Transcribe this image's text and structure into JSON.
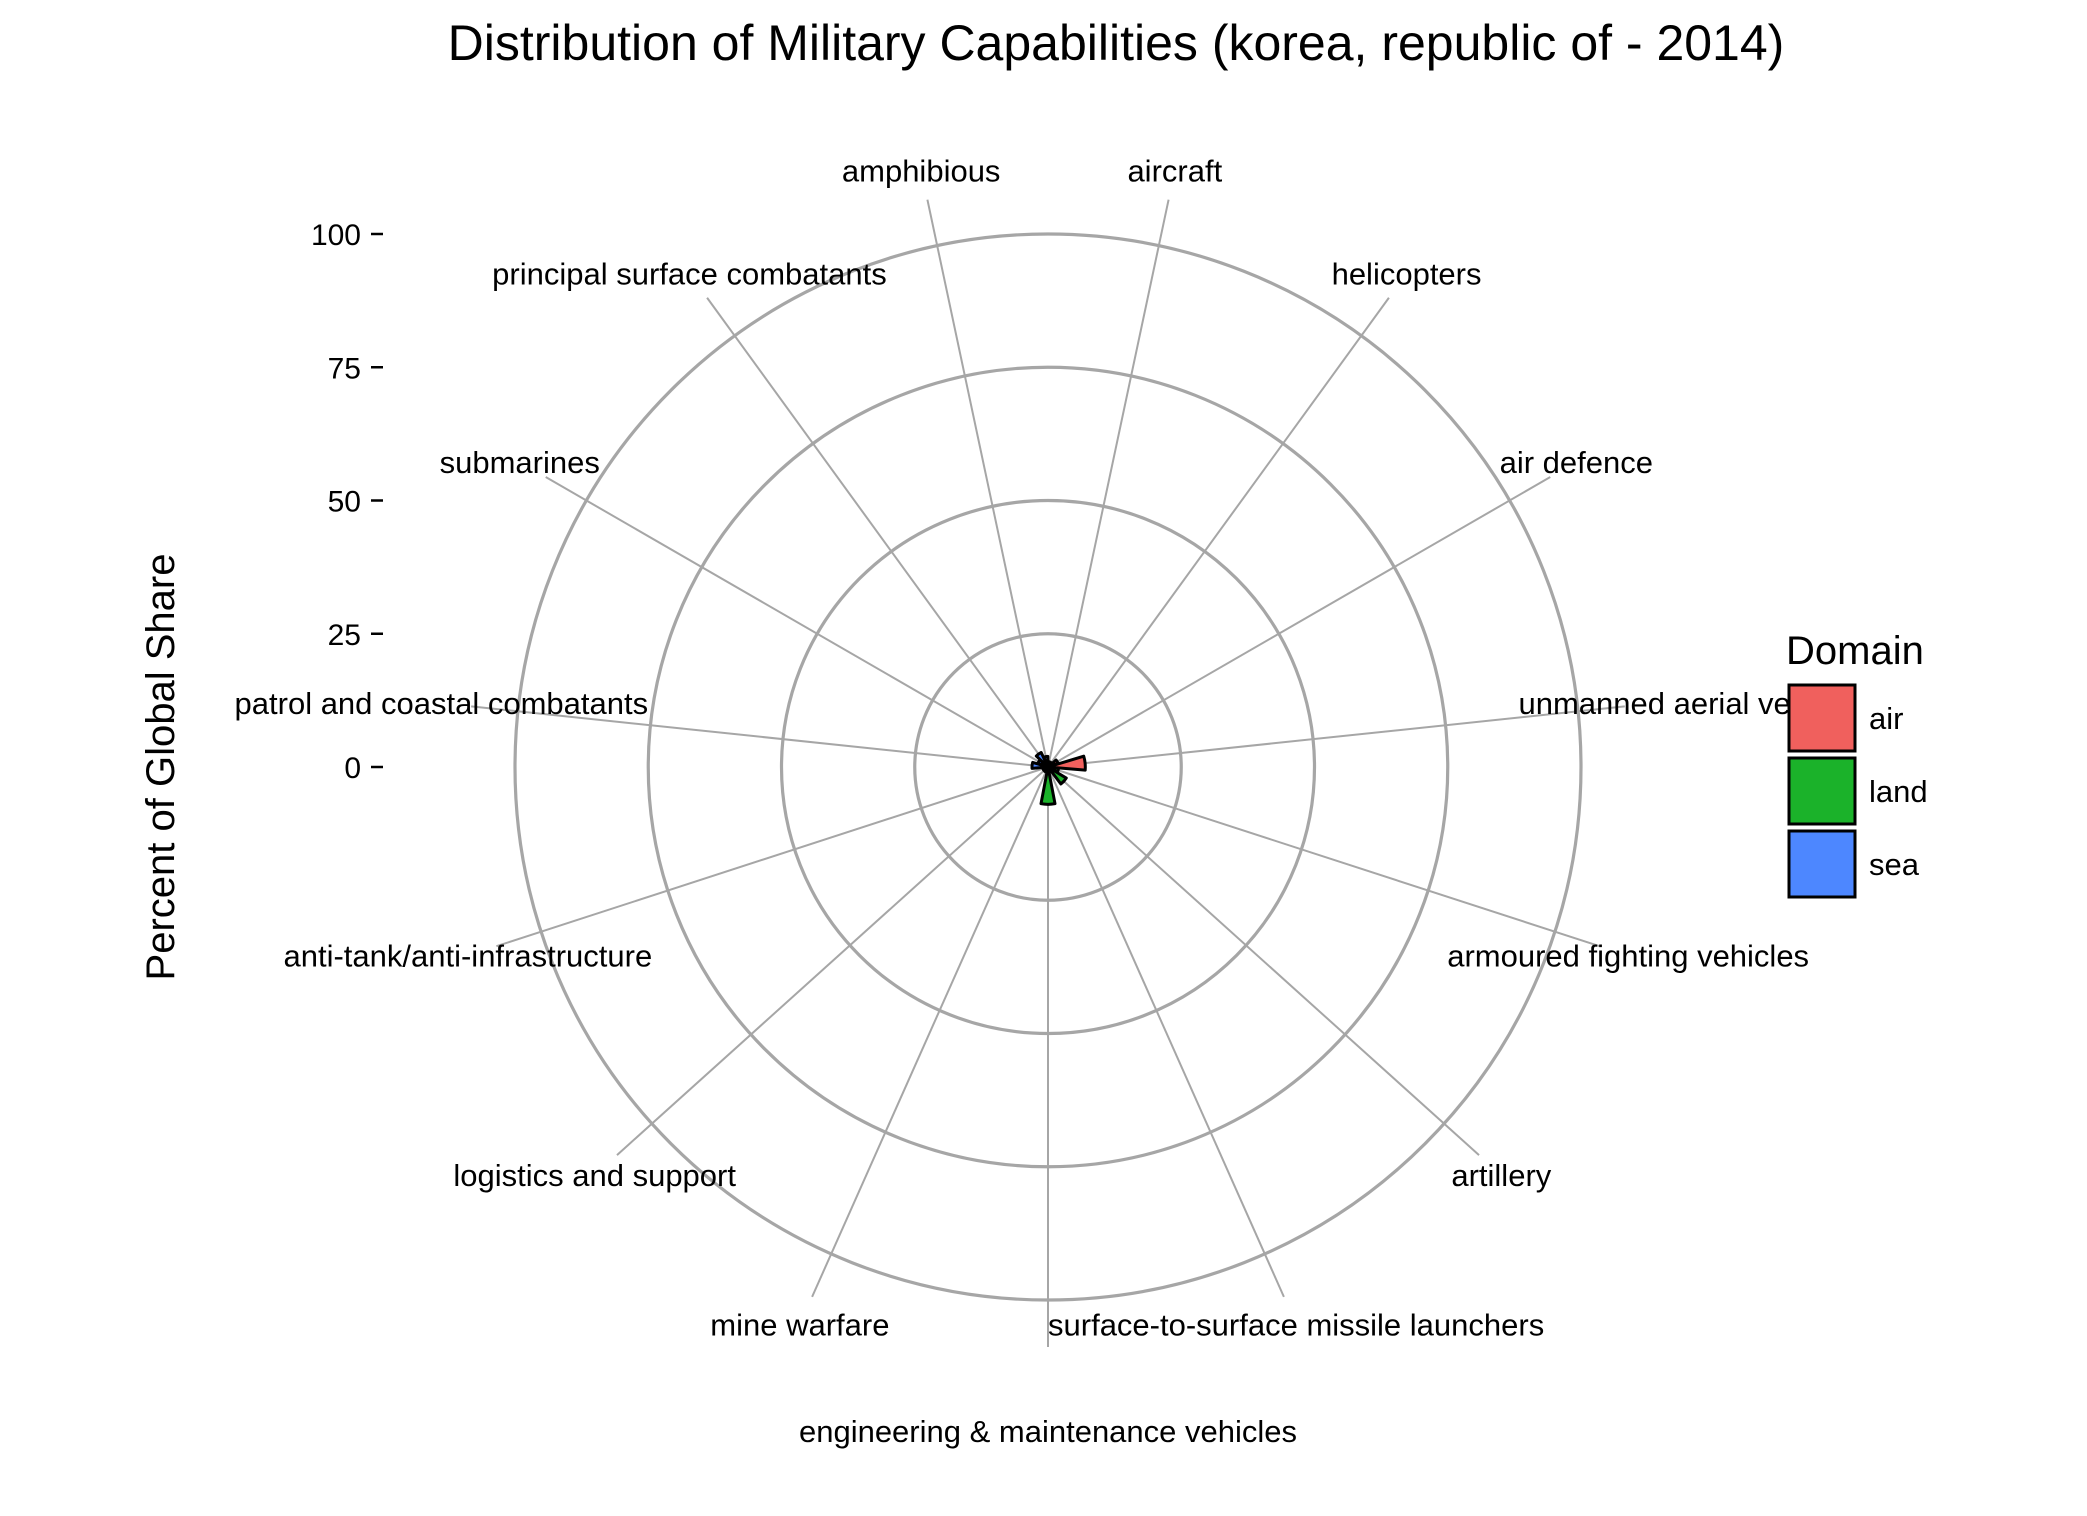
{
  "chart_data": {
    "type": "bar",
    "coord": "polar",
    "title": "Distribution of Military Capabilities (korea, republic of - 2014)",
    "ylabel": "Percent of Global Share",
    "xlabel": "",
    "ylim": [
      0,
      100
    ],
    "yticks": [
      0,
      25,
      50,
      75,
      100
    ],
    "grid": true,
    "legend": {
      "title": "Domain",
      "position": "right",
      "entries": [
        {
          "name": "air",
          "color": "#F0605D"
        },
        {
          "name": "land",
          "color": "#1BB22A"
        },
        {
          "name": "sea",
          "color": "#4D87FF"
        }
      ]
    },
    "categories": [
      {
        "label": "aircraft",
        "domain": "air",
        "value": 1
      },
      {
        "label": "helicopters",
        "domain": "air",
        "value": 1
      },
      {
        "label": "air defence",
        "domain": "air",
        "value": 2
      },
      {
        "label": "unmanned aerial ve",
        "domain": "air",
        "value": 7
      },
      {
        "label": "armoured fighting vehicles",
        "domain": "land",
        "value": 2
      },
      {
        "label": "artillery",
        "domain": "land",
        "value": 4
      },
      {
        "label": "surface-to-surface missile launchers",
        "domain": "land",
        "value": 1
      },
      {
        "label": "engineering & maintenance vehicles",
        "domain": "land",
        "value": 7
      },
      {
        "label": "mine warfare",
        "domain": "sea",
        "value": 1
      },
      {
        "label": "logistics and support",
        "domain": "land",
        "value": 1
      },
      {
        "label": "anti-tank/anti-infrastructure",
        "domain": "land",
        "value": 1
      },
      {
        "label": "patrol and coastal combatants",
        "domain": "sea",
        "value": 3
      },
      {
        "label": "submarines",
        "domain": "sea",
        "value": 2
      },
      {
        "label": "principal surface combatants",
        "domain": "sea",
        "value": 3
      },
      {
        "label": "amphibious",
        "domain": "sea",
        "value": 2
      }
    ]
  }
}
